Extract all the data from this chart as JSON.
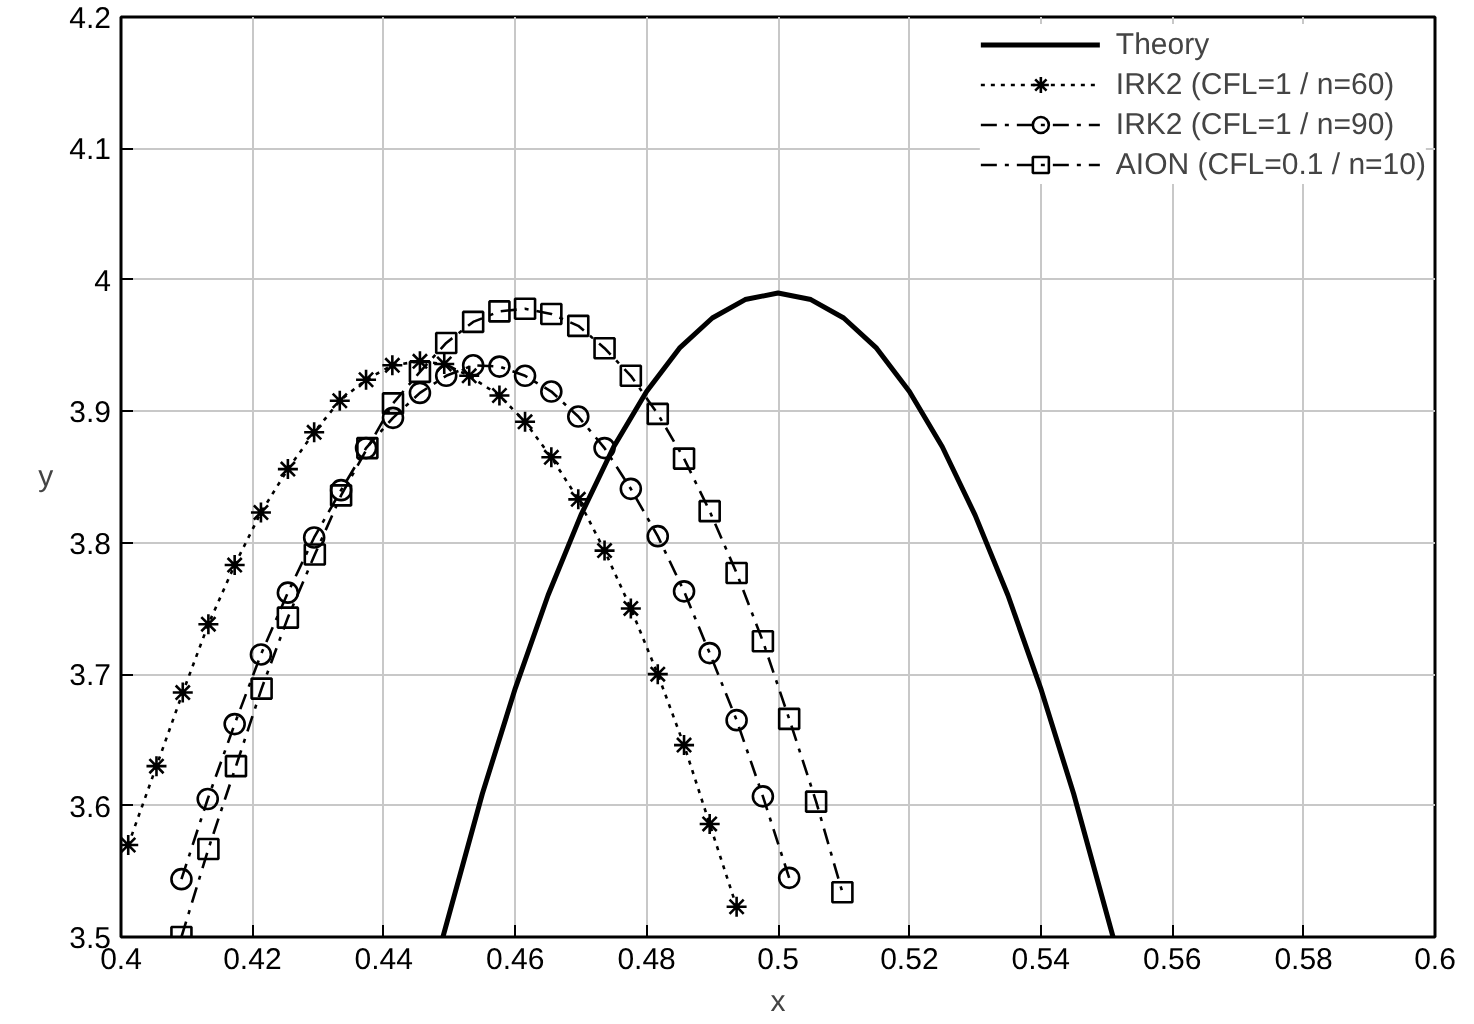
{
  "chart_data": {
    "type": "line",
    "xlabel": "x",
    "ylabel": "y",
    "xlim": [
      0.4,
      0.6
    ],
    "ylim": [
      3.5,
      4.2
    ],
    "xticks": [
      {
        "value": 0.4,
        "label": "0.4"
      },
      {
        "value": 0.42,
        "label": "0.42"
      },
      {
        "value": 0.44,
        "label": "0.44"
      },
      {
        "value": 0.46,
        "label": "0.46"
      },
      {
        "value": 0.48,
        "label": "0.48"
      },
      {
        "value": 0.5,
        "label": "0.5"
      },
      {
        "value": 0.52,
        "label": "0.52"
      },
      {
        "value": 0.54,
        "label": "0.54"
      },
      {
        "value": 0.56,
        "label": "0.56"
      },
      {
        "value": 0.58,
        "label": "0.58"
      },
      {
        "value": 0.6,
        "label": "0.6"
      }
    ],
    "yticks": [
      {
        "value": 3.5,
        "label": "3.5"
      },
      {
        "value": 3.6,
        "label": "3.6"
      },
      {
        "value": 3.7,
        "label": "3.7"
      },
      {
        "value": 3.8,
        "label": "3.8"
      },
      {
        "value": 3.9,
        "label": "3.9"
      },
      {
        "value": 4.0,
        "label": "4"
      },
      {
        "value": 4.1,
        "label": "4.1"
      },
      {
        "value": 4.2,
        "label": "4.2"
      }
    ],
    "grid": true,
    "legend": "top right",
    "series": [
      {
        "name": "Theory",
        "color": "#000000",
        "marker": "none",
        "line_style": "solid",
        "x": [
          0.449,
          0.455,
          0.46,
          0.465,
          0.47,
          0.475,
          0.48,
          0.485,
          0.49,
          0.495,
          0.5,
          0.505,
          0.51,
          0.515,
          0.52,
          0.525,
          0.53,
          0.535,
          0.54,
          0.545,
          0.551
        ],
        "values": [
          3.5,
          3.609,
          3.689,
          3.76,
          3.821,
          3.873,
          3.915,
          3.948,
          3.971,
          3.985,
          3.99,
          3.985,
          3.971,
          3.948,
          3.915,
          3.873,
          3.821,
          3.76,
          3.689,
          3.609,
          3.5
        ]
      },
      {
        "name": "IRK2 (CFL=1 / n=60)",
        "color": "#000000",
        "marker": "cross",
        "line_style": "dotted",
        "x": [
          0.4011,
          0.4054,
          0.4094,
          0.4133,
          0.4173,
          0.4213,
          0.4254,
          0.4294,
          0.4333,
          0.4373,
          0.4413,
          0.4455,
          0.4492,
          0.453,
          0.4576,
          0.4615,
          0.4655,
          0.4696,
          0.4736,
          0.4776,
          0.4817,
          0.4857,
          0.4896,
          0.4937
        ],
        "values": [
          3.57,
          3.63,
          3.686,
          3.738,
          3.783,
          3.823,
          3.856,
          3.884,
          3.908,
          3.924,
          3.935,
          3.938,
          3.936,
          3.927,
          3.912,
          3.892,
          3.865,
          3.833,
          3.794,
          3.75,
          3.7,
          3.646,
          3.586,
          3.523
        ]
      },
      {
        "name": "IRK2 (CFL=1 / n=90)",
        "color": "#000000",
        "marker": "circle",
        "line_style": "dashed",
        "x": [
          0.4092,
          0.4132,
          0.4173,
          0.4213,
          0.4254,
          0.4294,
          0.4335,
          0.4373,
          0.4414,
          0.4455,
          0.4495,
          0.4536,
          0.4576,
          0.4615,
          0.4655,
          0.4696,
          0.4736,
          0.4776,
          0.4817,
          0.4857,
          0.4896,
          0.4937,
          0.4977,
          0.5017
        ],
        "values": [
          3.544,
          3.605,
          3.662,
          3.715,
          3.762,
          3.804,
          3.84,
          3.872,
          3.895,
          3.914,
          3.927,
          3.935,
          3.934,
          3.927,
          3.915,
          3.896,
          3.872,
          3.841,
          3.805,
          3.763,
          3.716,
          3.665,
          3.607,
          3.545
        ]
      },
      {
        "name": "AION (CFL=0.1 / n=10)",
        "color": "#000000",
        "marker": "square",
        "line_style": "dashed",
        "x": [
          0.4092,
          0.4133,
          0.4175,
          0.4214,
          0.4254,
          0.4295,
          0.4335,
          0.4375,
          0.4414,
          0.4455,
          0.4495,
          0.4536,
          0.4576,
          0.4615,
          0.4655,
          0.4696,
          0.4736,
          0.4776,
          0.4817,
          0.4857,
          0.4896,
          0.4937,
          0.4977,
          0.5017,
          0.5058,
          0.5098
        ],
        "values": [
          3.5,
          3.567,
          3.63,
          3.689,
          3.743,
          3.791,
          3.836,
          3.872,
          3.906,
          3.93,
          3.952,
          3.968,
          3.976,
          3.978,
          3.974,
          3.965,
          3.948,
          3.927,
          3.898,
          3.864,
          3.824,
          3.777,
          3.725,
          3.666,
          3.603,
          3.534
        ]
      }
    ]
  }
}
